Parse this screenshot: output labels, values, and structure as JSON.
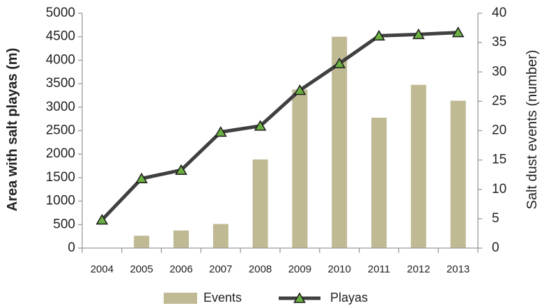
{
  "chart_data": {
    "type": "bar+line",
    "categories": [
      "2004",
      "2005",
      "2006",
      "2007",
      "2008",
      "2009",
      "2010",
      "2011",
      "2012",
      "2013"
    ],
    "series": [
      {
        "name": "Events",
        "type": "bar",
        "axis": "right",
        "color": "#bfb994",
        "values": [
          0,
          2.1,
          3.0,
          4.1,
          15.1,
          27.0,
          36.0,
          22.2,
          27.8,
          25.1
        ]
      },
      {
        "name": "Playas",
        "type": "line",
        "axis": "left",
        "color": "#404040",
        "marker": "triangle",
        "marker_color": "#6cb044",
        "values": [
          600,
          1480,
          1660,
          2470,
          2600,
          3360,
          3930,
          4520,
          4550,
          4590
        ]
      }
    ],
    "ylabel": "Area with salt playas (m)",
    "y2label": "Salt dust events (number)",
    "ylim": [
      0,
      5000
    ],
    "yticks": [
      "0",
      "500",
      "1000",
      "1500",
      "2000",
      "2500",
      "3000",
      "3500",
      "4000",
      "4500",
      "5000"
    ],
    "y2lim": [
      0,
      40
    ],
    "y2ticks": [
      "0",
      "5",
      "10",
      "15",
      "20",
      "25",
      "30",
      "35",
      "40"
    ],
    "legend": "bottom",
    "grid": false
  }
}
